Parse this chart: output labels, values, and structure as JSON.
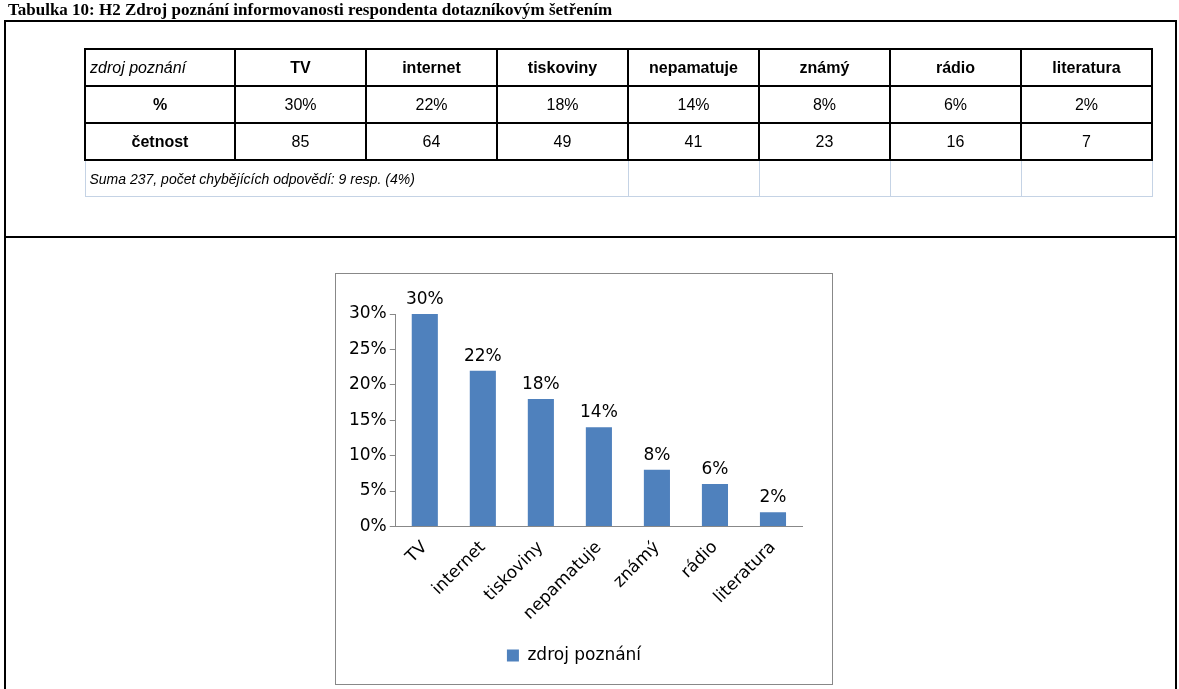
{
  "chart_data": {
    "type": "bar",
    "title": "Tabulka 10: H2 Zdroj poznání informovanosti respondenta dotazníkovým šetřením",
    "categories": [
      "TV",
      "internet",
      "tiskoviny",
      "nepamatuje",
      "známý",
      "rádio",
      "literatura"
    ],
    "series": [
      {
        "name": "zdroj poznání",
        "color": "#4f81bd",
        "values": [
          30,
          22,
          18,
          14,
          8,
          6,
          2
        ],
        "value_labels": [
          "30%",
          "22%",
          "18%",
          "14%",
          "8%",
          "6%",
          "2%"
        ]
      }
    ],
    "ylim": [
      0,
      30
    ],
    "yticks": [
      {
        "value": 0,
        "label": "0%"
      },
      {
        "value": 5,
        "label": "5%"
      },
      {
        "value": 10,
        "label": "10%"
      },
      {
        "value": 15,
        "label": "15%"
      },
      {
        "value": 20,
        "label": "20%"
      },
      {
        "value": 25,
        "label": "25%"
      },
      {
        "value": 30,
        "label": "30%"
      }
    ],
    "grid": false,
    "legend": "bottom",
    "annotations": [
      "zdroj poznání",
      "%",
      "četnost",
      "85",
      "64",
      "49",
      "41",
      "23",
      "16",
      "7",
      "Suma 237, počet chybějících odpovědí: 9 resp. (4%)"
    ]
  }
}
